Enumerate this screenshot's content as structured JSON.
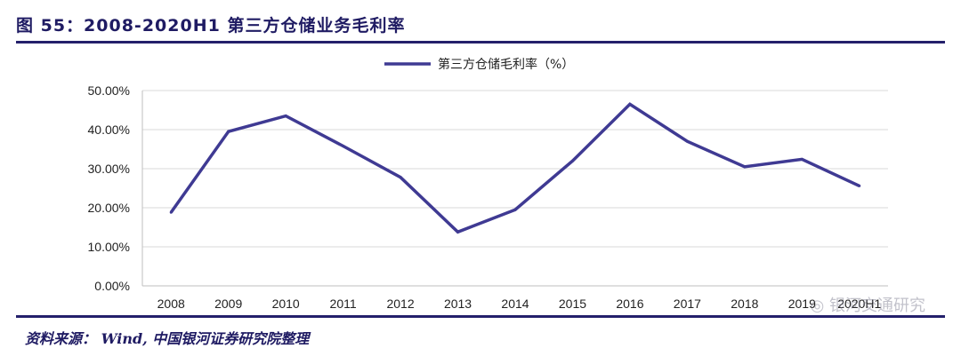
{
  "figure": {
    "title": "图 55：2008-2020H1 第三方仓储业务毛利率",
    "source": "资料来源： Wind, 中国银河证券研究院整理",
    "watermark": "银河交通研究"
  },
  "colors": {
    "series": "#3f3a93",
    "accent": "#24206b",
    "grid": "#d9d9d9"
  },
  "chart_data": {
    "type": "line",
    "title": "",
    "xlabel": "",
    "ylabel": "",
    "categories": [
      "2008",
      "2009",
      "2010",
      "2011",
      "2012",
      "2013",
      "2014",
      "2015",
      "2016",
      "2017",
      "2018",
      "2019",
      "2020H1"
    ],
    "series": [
      {
        "name": "第三方仓储毛利率（%）",
        "values": [
          18.8,
          39.5,
          43.5,
          35.8,
          27.8,
          13.8,
          19.5,
          32.0,
          46.5,
          37.0,
          30.5,
          32.4,
          25.6
        ]
      }
    ],
    "ylim": [
      0,
      50
    ],
    "yticks": [
      "0.00%",
      "10.00%",
      "20.00%",
      "30.00%",
      "40.00%",
      "50.00%"
    ],
    "grid": true,
    "legend_position": "top-center"
  }
}
